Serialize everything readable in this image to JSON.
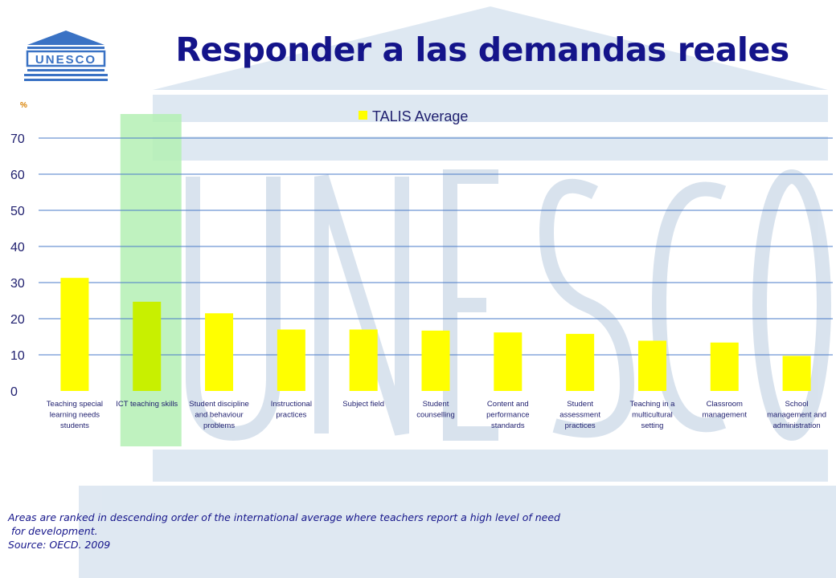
{
  "slide": {
    "title": "Responder a las demandas reales",
    "percent_sign": "%",
    "footnote_line1": "Areas are ranked in descending order of the international average where teachers report a high level of need",
    "footnote_line2": "for development.",
    "footnote_line3": "Source: OECD. 2009",
    "logo_text": "UNESCO",
    "watermark_text": "UNESCO"
  },
  "colors": {
    "title": "#14148a",
    "bar": "#ffff00",
    "bar_highlight": "#c8f000",
    "highlight_band": "#b4f0b4",
    "gridline": "#4a7bc8",
    "logo": "#3a72c4"
  },
  "chart_data": {
    "type": "bar",
    "categories": [
      "Teaching special learning needs students",
      "ICT teaching skills",
      "Student discipline and behaviour problems",
      "Instructional practices",
      "Subject field",
      "Student counselling",
      "Content and performance standards",
      "Student assessment practices",
      "Teaching in a multicultural setting",
      "Classroom management",
      "School management and administration"
    ],
    "category_lines": [
      [
        "Teaching special",
        "learning needs",
        "students"
      ],
      [
        "ICT teaching skills"
      ],
      [
        "Student discipline",
        "and behaviour",
        "problems"
      ],
      [
        "Instructional",
        "practices"
      ],
      [
        "Subject field"
      ],
      [
        "Student",
        "counselling"
      ],
      [
        "Content and",
        "performance",
        "standards"
      ],
      [
        "Student",
        "assessment",
        "practices"
      ],
      [
        "Teaching in a",
        "multicultural",
        "setting"
      ],
      [
        "Classroom",
        "management"
      ],
      [
        "School",
        "management and",
        "administration"
      ]
    ],
    "series": [
      {
        "name": "TALIS Average",
        "values": [
          31.3,
          24.7,
          21.5,
          17.0,
          17.0,
          16.7,
          16.2,
          15.8,
          13.9,
          13.4,
          9.7
        ]
      }
    ],
    "highlighted_category": "ICT teaching skills",
    "ylim": [
      0,
      70
    ],
    "yticks": [
      "0",
      "10",
      "20",
      "30",
      "40",
      "50",
      "60",
      "70"
    ],
    "ylabel": "%",
    "grid": true,
    "legend_position": "top"
  }
}
